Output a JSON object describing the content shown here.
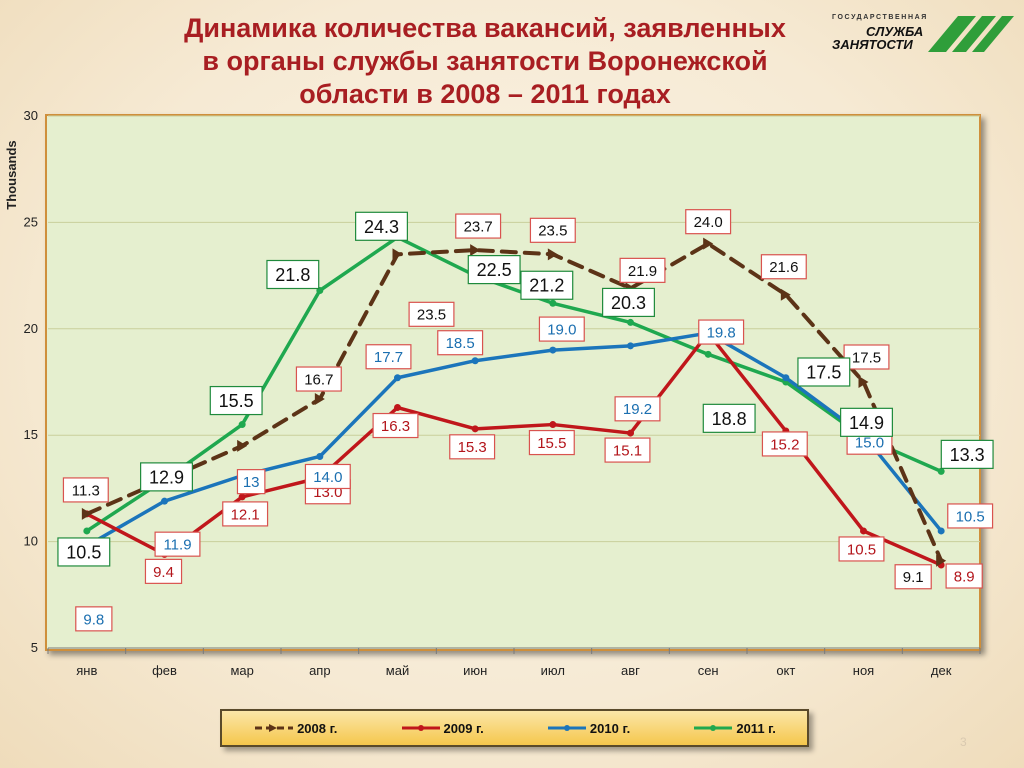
{
  "title_lines": [
    "Динамика количества вакансий, заявленных",
    "в органы службы занятости Воронежской",
    "области в 2008 – 2011  годах"
  ],
  "logo": {
    "line1": "ГОСУДАРСТВЕННАЯ",
    "line2": "СЛУЖБА",
    "line3": "ЗАНЯТОСТИ"
  },
  "page_number": "3",
  "chart_data": {
    "type": "line",
    "ylabel": "Thousands",
    "ylim": [
      5,
      30
    ],
    "yticks": [
      5,
      10,
      15,
      20,
      25,
      30
    ],
    "grid": "horizontal",
    "legend_position": "bottom",
    "categories": [
      "янв",
      "фев",
      "мар",
      "апр",
      "май",
      "июн",
      "июл",
      "авг",
      "сен",
      "окт",
      "ноя",
      "дек"
    ],
    "series": [
      {
        "name": "2008 г.",
        "color": "#5c3317",
        "dashed": true,
        "values": [
          11.3,
          12.9,
          14.5,
          16.7,
          23.5,
          23.7,
          23.5,
          21.9,
          24.0,
          21.6,
          17.5,
          9.1
        ],
        "labels": [
          "11.3",
          "",
          "",
          "16.7",
          "23.5",
          "23.7",
          "23.5",
          "21.9",
          "24.0",
          "21.6",
          "17.5",
          "9.1"
        ]
      },
      {
        "name": "2009 г.",
        "color": "#c0161b",
        "values": [
          11.3,
          9.4,
          12.1,
          13.0,
          16.3,
          15.3,
          15.5,
          15.1,
          19.8,
          15.2,
          10.5,
          8.9
        ],
        "labels": [
          "",
          "9.4",
          "12.1",
          "13.0",
          "16.3",
          "15.3",
          "15.5",
          "15.1",
          "",
          "15.2",
          "10.5",
          "8.9"
        ]
      },
      {
        "name": "2010 г.",
        "color": "#1b75bb",
        "values": [
          9.8,
          11.9,
          13.1,
          14.0,
          17.7,
          18.5,
          19.0,
          19.2,
          19.8,
          17.7,
          15.0,
          10.5
        ],
        "labels": [
          "9.8",
          "11.9",
          "13",
          "14.0",
          "17.7",
          "18.5",
          "19.0",
          "19.2",
          "19.8",
          "",
          "15.0",
          "10.5"
        ]
      },
      {
        "name": "2011 г.",
        "color": "#1fa84f",
        "values": [
          10.5,
          12.9,
          15.5,
          21.8,
          24.3,
          22.5,
          21.2,
          20.3,
          18.8,
          17.5,
          14.9,
          13.3
        ],
        "labels": [
          "10.5",
          "12.9",
          "15.5",
          "21.8",
          "24.3",
          "22.5",
          "21.2",
          "20.3",
          "18.8",
          "17.5",
          "14.9",
          "13.3"
        ]
      }
    ]
  }
}
